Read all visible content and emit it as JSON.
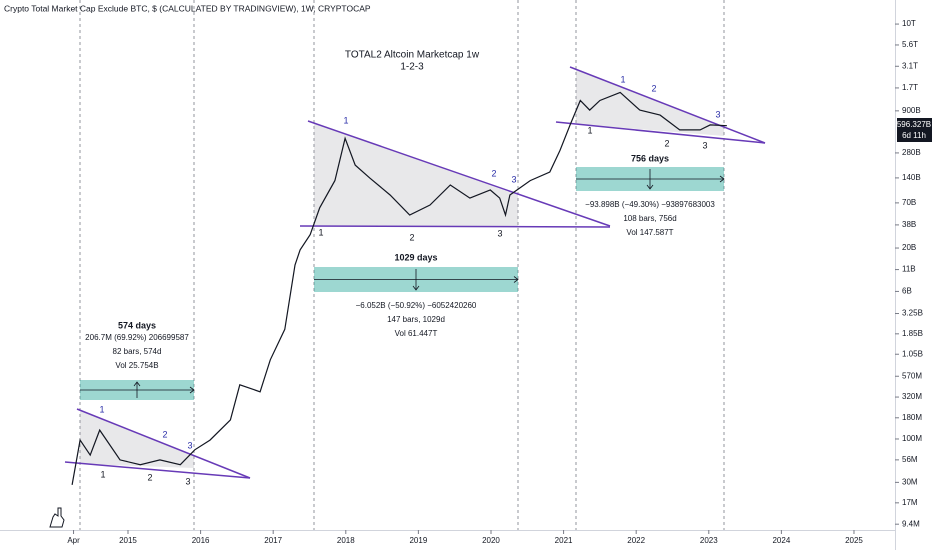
{
  "chart_data": {
    "type": "line",
    "title": "Crypto Total Market Cap Exclude BTC, $ (CALCULATED BY TRADINGVIEW), 1W, CRYPTOCAP",
    "annotation_title": "TOTAL2 Altcoin Marketcap 1w",
    "annotation_subtitle": "1-2-3",
    "last_price_label": "596.327B",
    "countdown_label": "6d 11h",
    "log_scale": true,
    "grid": false,
    "color": "#131722",
    "x": [
      2014.23,
      2014.34,
      2014.48,
      2014.61,
      2014.89,
      2015.17,
      2015.44,
      2015.72,
      2015.92,
      2016.13,
      2016.41,
      2016.54,
      2016.82,
      2016.96,
      2017.16,
      2017.3,
      2017.37,
      2017.51,
      2017.64,
      2017.85,
      2017.99,
      2018.13,
      2018.33,
      2018.61,
      2018.88,
      2019.16,
      2019.44,
      2019.71,
      2019.99,
      2020.12,
      2020.2,
      2020.26,
      2020.54,
      2020.81,
      2020.95,
      2021.09,
      2021.23,
      2021.36,
      2021.5,
      2021.78,
      2022.05,
      2022.33,
      2022.6,
      2022.88,
      2023.02,
      2023.25
    ],
    "values": [
      28000000,
      97000000,
      64000000,
      128000000,
      56000000,
      49000000,
      56000000,
      49000000,
      74000000,
      97000000,
      170000000,
      450000000,
      370000000,
      900000000,
      2100000000,
      12500000000,
      19000000000,
      29000000000,
      61000000000,
      130000000000,
      420000000000,
      200000000000,
      140000000000,
      87000000000,
      50000000000,
      66000000000,
      115000000000,
      80000000000,
      100000000000,
      80000000000,
      50000000000,
      87000000000,
      130000000000,
      165000000000,
      300000000000,
      610000000000,
      1200000000000,
      920000000000,
      1200000000000,
      1500000000000,
      920000000000,
      800000000000,
      530000000000,
      530000000000,
      610000000000,
      596327000000
    ],
    "xlim": [
      2013.237,
      2025.565
    ],
    "ylim": [
      8000000,
      19500000000000
    ],
    "xticks": [
      {
        "value": 2014.25,
        "label": "Apr"
      },
      2015,
      2016,
      2017,
      2018,
      2019,
      2020,
      2021,
      2022,
      2023,
      2024,
      2025
    ],
    "yticks": [
      {
        "value": 10000000000000,
        "label": "10T"
      },
      {
        "value": 5600000000000,
        "label": "5.6T"
      },
      {
        "value": 3100000000000,
        "label": "3.1T"
      },
      {
        "value": 1700000000000,
        "label": "1.7T"
      },
      {
        "value": 900000000000,
        "label": "900B"
      },
      {
        "value": 280000000000,
        "label": "280B"
      },
      {
        "value": 140000000000,
        "label": "140B"
      },
      {
        "value": 70000000000,
        "label": "70B"
      },
      {
        "value": 38000000000,
        "label": "38B"
      },
      {
        "value": 20000000000,
        "label": "20B"
      },
      {
        "value": 11000000000,
        "label": "11B"
      },
      {
        "value": 6000000000,
        "label": "6B"
      },
      {
        "value": 3250000000,
        "label": "3.25B"
      },
      {
        "value": 1850000000,
        "label": "1.85B"
      },
      {
        "value": 1050000000,
        "label": "1.05B"
      },
      {
        "value": 570000000,
        "label": "570M"
      },
      {
        "value": 320000000,
        "label": "320M"
      },
      {
        "value": 180000000,
        "label": "180M"
      },
      {
        "value": 100000000,
        "label": "100M"
      },
      {
        "value": 56000000,
        "label": "56M"
      },
      {
        "value": 30000000,
        "label": "30M"
      },
      {
        "value": 17000000,
        "label": "17M"
      },
      {
        "value": 9400000,
        "label": "9.4M"
      }
    ],
    "measurements": [
      {
        "title": "574 days",
        "lines": [
          "206.7M (69.92%) 206699587",
          "82 bars, 574d",
          "Vol 25.754B"
        ]
      },
      {
        "title": "1029 days",
        "lines": [
          "−6.052B (−50.92%) −6052420260",
          "147 bars, 1029d",
          "Vol 61.447T"
        ]
      },
      {
        "title": "756 days",
        "lines": [
          "−93.898B (−49.30%) −93897683003",
          "108 bars, 756d",
          "Vol 147.587T"
        ]
      }
    ],
    "wave_labels_upper": [
      "1",
      "2",
      "3",
      "1",
      "2",
      "3",
      "1",
      "2",
      "3"
    ],
    "wave_labels_lower": [
      "1",
      "2",
      "3",
      "1",
      "2",
      "3",
      "1",
      "2",
      "3"
    ]
  }
}
